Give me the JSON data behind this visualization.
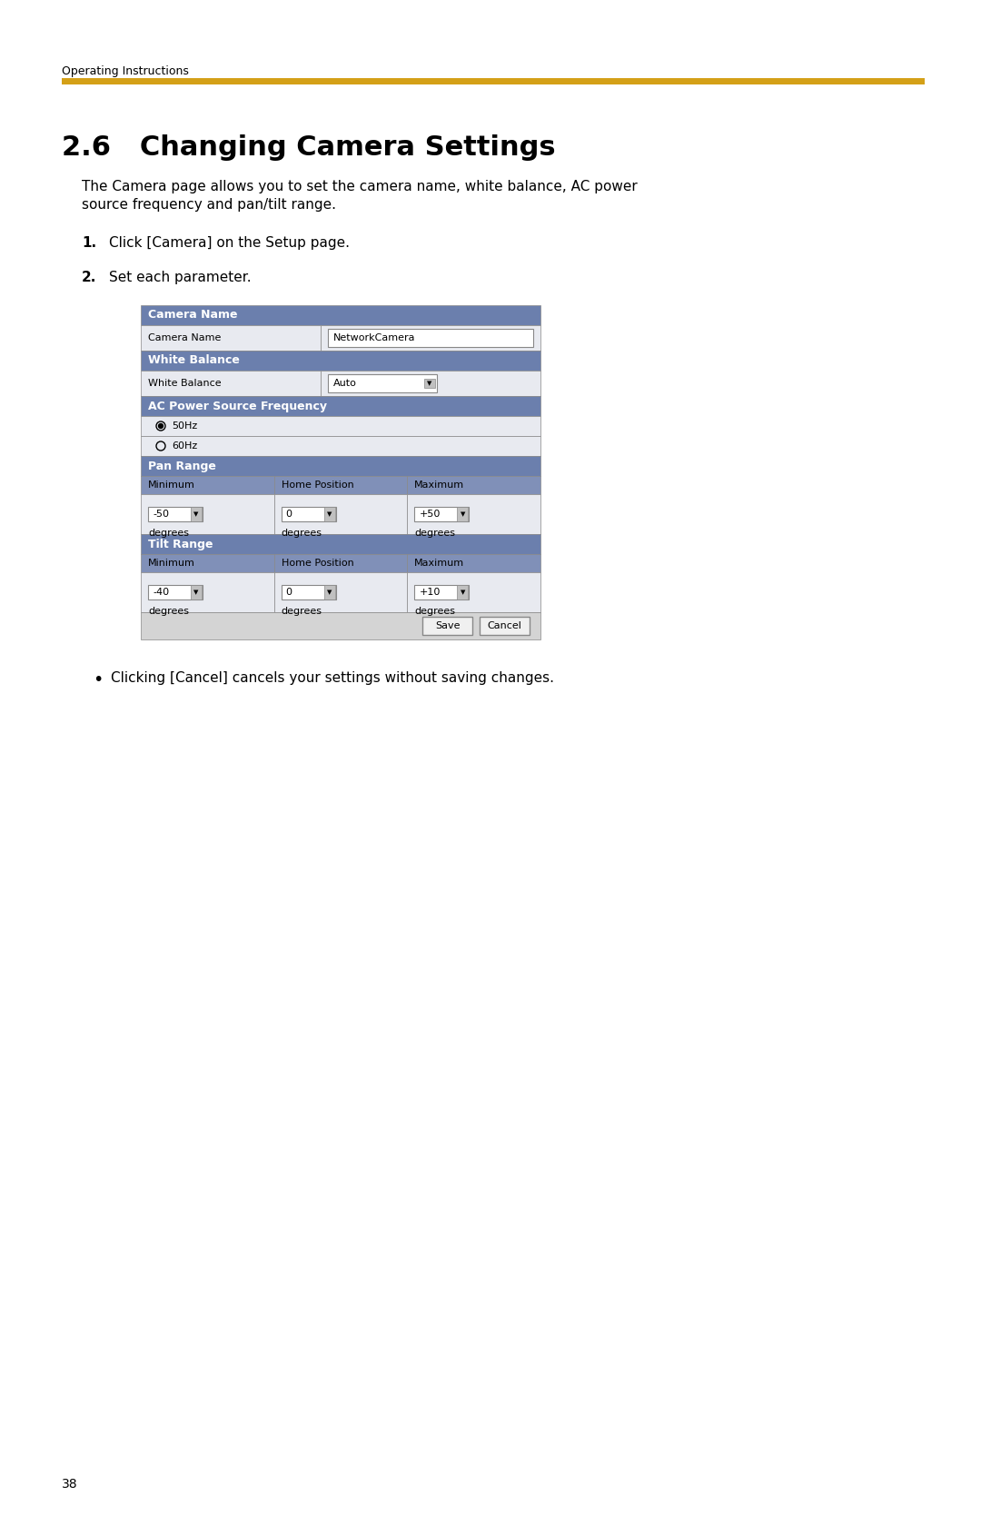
{
  "page_bg": "#ffffff",
  "header_text": "Operating Instructions",
  "header_line_color": "#d4a017",
  "header_text_color": "#000000",
  "header_fontsize": 9,
  "title": "2.6   Changing Camera Settings",
  "title_fontsize": 22,
  "body_text_1": "The Camera page allows you to set the camera name, white balance, AC power\nsource frequency and pan/tilt range.",
  "body_fontsize": 11,
  "step1_num": "1.",
  "step1_text": "Click [Camera] on the Setup page.",
  "step2_num": "2.",
  "step2_text": "Set each parameter.",
  "step_fontsize": 11,
  "bullet_text": "Clicking [Cancel] cancels your settings without saving changes.",
  "bullet_fontsize": 11,
  "footer_page": "38",
  "footer_fontsize": 10,
  "section_header_color": "#6b7fad",
  "section_header_text_color": "#ffffff",
  "section_header_fontsize": 9,
  "table_bg_light": "#e8eaf0",
  "table_bg_white": "#ffffff",
  "table_border_color": "#aaaaaa",
  "col_header_color": "#8090b8",
  "col_header_text_color": "#ffffff",
  "col_header_fontsize": 8,
  "cell_fontsize": 8,
  "sections": [
    {
      "name": "Camera Name",
      "rows": [
        {
          "cells": [
            {
              "label": "Camera Name",
              "span": 1
            },
            {
              "label": "NetworkCamera",
              "span": 2,
              "input": true
            }
          ]
        }
      ]
    },
    {
      "name": "White Balance",
      "rows": [
        {
          "cells": [
            {
              "label": "White Balance",
              "span": 1
            },
            {
              "label": "Auto",
              "span": 2,
              "dropdown": true
            }
          ]
        }
      ]
    },
    {
      "name": "AC Power Source Frequency",
      "rows": [
        {
          "radio": true,
          "label": "50Hz",
          "selected": true
        },
        {
          "radio": true,
          "label": "60Hz",
          "selected": false
        }
      ]
    },
    {
      "name": "Pan Range",
      "has_col_headers": true,
      "col_headers": [
        "Minimum",
        "Home Position",
        "Maximum"
      ],
      "rows": [
        {
          "cells": [
            {
              "dropdown_val": "-50",
              "sublabel": "degrees"
            },
            {
              "dropdown_val": "0",
              "sublabel": "degrees"
            },
            {
              "dropdown_val": "+50",
              "sublabel": "degrees"
            }
          ]
        }
      ]
    },
    {
      "name": "Tilt Range",
      "has_col_headers": true,
      "col_headers": [
        "Minimum",
        "Home Position",
        "Maximum"
      ],
      "rows": [
        {
          "cells": [
            {
              "dropdown_val": "-40",
              "sublabel": "degrees"
            },
            {
              "dropdown_val": "0",
              "sublabel": "degrees"
            },
            {
              "dropdown_val": "+10",
              "sublabel": "degrees"
            }
          ]
        }
      ]
    }
  ],
  "save_btn": "Save",
  "cancel_btn": "Cancel"
}
